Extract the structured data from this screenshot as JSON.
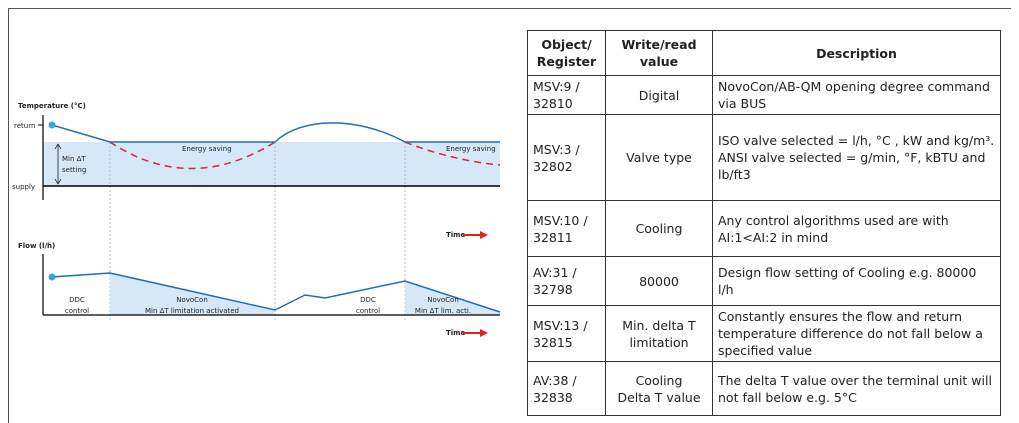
{
  "diagram": {
    "temperature_axis": "Temperature (°C)",
    "return": "return",
    "supply": "supply",
    "min_dt": [
      "Min ΔT",
      "setting"
    ],
    "energy_saving": [
      "Energy saving",
      "Energy saving"
    ],
    "time": [
      "Time",
      "Time"
    ],
    "flow_axis": "Flow (l/h)",
    "ddc": [
      [
        "DDC",
        "control"
      ],
      [
        "DDC",
        "control"
      ]
    ],
    "novocon": [
      [
        "NovoCon",
        "Min ΔT limitation activated"
      ],
      [
        "NovoCon",
        "Min ΔT lim. acti."
      ]
    ]
  },
  "table": {
    "header": [
      "Object/\nRegister",
      "Write/read\nvalue",
      "Description"
    ],
    "rows": [
      [
        "MSV:9 /\n32810",
        "Digital",
        "NovoCon/AB-QM opening degree command via BUS"
      ],
      [
        "MSV:3 /\n32802",
        "Valve type",
        "ISO valve selected = l/h, °C , kW and kg/m³.\nANSI valve selected = g/min, °F, kBTU and lb/ft3"
      ],
      [
        "MSV:10 /\n32811",
        "Cooling",
        "Any control algorithms used are with AI:1<AI:2 in mind"
      ],
      [
        "AV:31 /\n32798",
        "80000",
        "Design flow setting of Cooling e.g. 80000 l/h"
      ],
      [
        "MSV:13 /\n32815",
        "Min. delta T\nlimitation",
        "Constantly ensures the flow and return temperature difference do not fall below a specified value"
      ],
      [
        "AV:38 /\n32838",
        "Cooling\nDelta T value",
        "The delta T value over the terminal unit will not fall below e.g. 5°C"
      ]
    ]
  }
}
